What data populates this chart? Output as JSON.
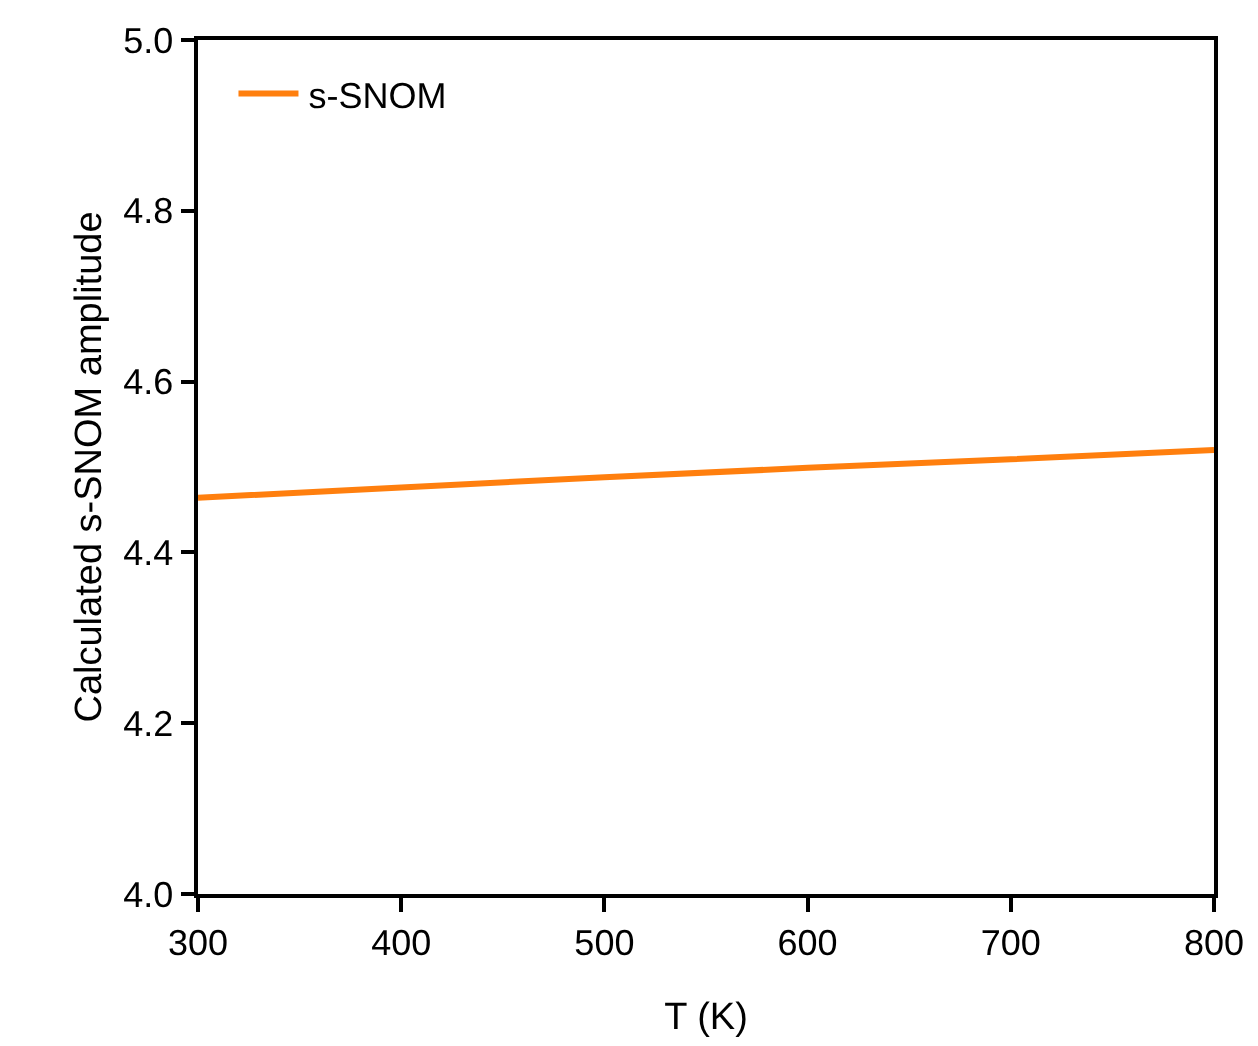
{
  "chart_data": {
    "type": "line",
    "xlabel": "T (K)",
    "ylabel": "Calculated s-SNOM amplitude",
    "x": [
      300,
      400,
      500,
      600,
      700,
      800
    ],
    "series": [
      {
        "name": "s-SNOM",
        "color": "#ff7f0e",
        "values": [
          4.464,
          4.476,
          4.488,
          4.499,
          4.509,
          4.52
        ]
      }
    ],
    "xlim": [
      300,
      800
    ],
    "xticks": [
      300,
      400,
      500,
      600,
      700,
      800
    ],
    "ylim": [
      4.0,
      5.0
    ],
    "yticks": [
      {
        "value": 4.0,
        "label": "4.0"
      },
      {
        "value": 4.2,
        "label": "4.2"
      },
      {
        "value": 4.4,
        "label": "4.4"
      },
      {
        "value": 4.6,
        "label": "4.6"
      },
      {
        "value": 4.8,
        "label": "4.8"
      },
      {
        "value": 5.0,
        "label": "5.0"
      }
    ],
    "grid": false,
    "legend": "top left",
    "marker": "none",
    "line_style": "solid"
  }
}
